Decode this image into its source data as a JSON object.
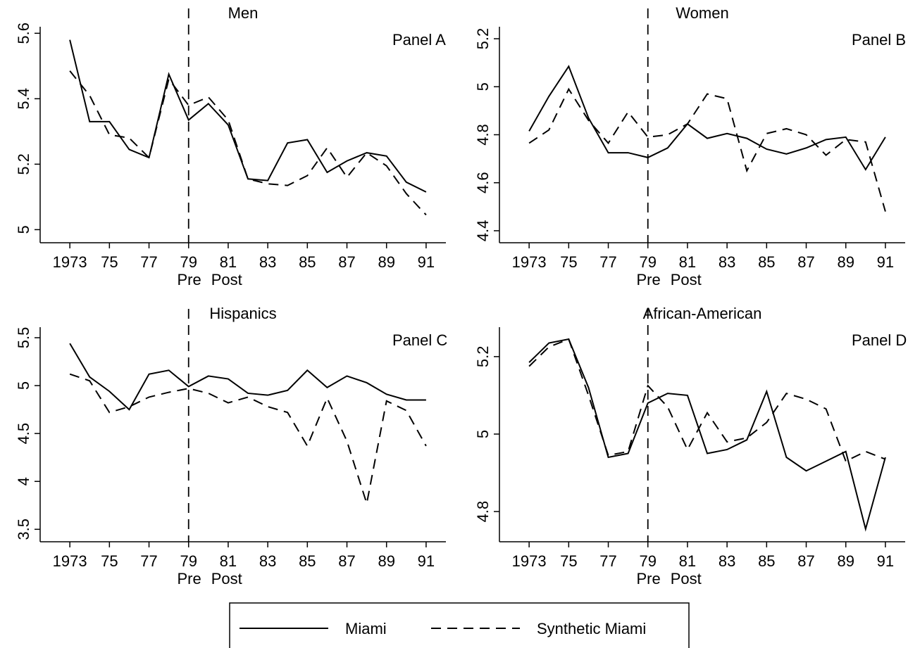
{
  "chart_data": [
    {
      "type": "line",
      "title": "Men",
      "panel_label": "Panel A",
      "x": [
        1973,
        1974,
        1975,
        1976,
        1977,
        1978,
        1979,
        1980,
        1981,
        1982,
        1983,
        1984,
        1985,
        1986,
        1987,
        1988,
        1989,
        1990,
        1991
      ],
      "series": [
        {
          "color": "#000000",
          "values": [
            5.58,
            5.33,
            5.33,
            5.245,
            5.22,
            5.475,
            5.335,
            5.385,
            5.32,
            5.155,
            5.15,
            5.265,
            5.275,
            5.175,
            5.21,
            5.235,
            5.225,
            5.145,
            5.115
          ]
        },
        {
          "color": "#000000",
          "values": [
            5.485,
            5.41,
            5.29,
            5.28,
            5.22,
            5.46,
            5.38,
            5.405,
            5.335,
            5.155,
            5.14,
            5.135,
            5.165,
            5.25,
            5.16,
            5.235,
            5.195,
            5.11,
            5.045
          ]
        }
      ],
      "xlim": [
        1971.5,
        1992
      ],
      "ylim": [
        4.96,
        5.62
      ],
      "yticks": [
        5,
        5.2,
        5.4,
        5.6
      ],
      "xticks": [
        {
          "value": 1973,
          "label": "1973"
        },
        {
          "value": 1975,
          "label": "75"
        },
        {
          "value": 1977,
          "label": "77"
        },
        {
          "value": 1979,
          "label": "79"
        },
        {
          "value": 1981,
          "label": "81"
        },
        {
          "value": 1983,
          "label": "83"
        },
        {
          "value": 1985,
          "label": "85"
        },
        {
          "value": 1987,
          "label": "87"
        },
        {
          "value": 1989,
          "label": "89"
        },
        {
          "value": 1991,
          "label": "91"
        }
      ],
      "vline": 1979,
      "period_labels": [
        "Pre",
        "Post"
      ]
    },
    {
      "type": "line",
      "title": "Women",
      "panel_label": "Panel B",
      "x": [
        1973,
        1974,
        1975,
        1976,
        1977,
        1978,
        1979,
        1980,
        1981,
        1982,
        1983,
        1984,
        1985,
        1986,
        1987,
        1988,
        1989,
        1990,
        1991
      ],
      "series": [
        {
          "color": "#000000",
          "values": [
            4.815,
            4.96,
            5.085,
            4.87,
            4.725,
            4.725,
            4.705,
            4.745,
            4.845,
            4.785,
            4.805,
            4.785,
            4.74,
            4.72,
            4.745,
            4.78,
            4.79,
            4.655,
            4.79
          ]
        },
        {
          "color": "#000000",
          "values": [
            4.765,
            4.82,
            4.99,
            4.86,
            4.765,
            4.895,
            4.79,
            4.8,
            4.845,
            4.97,
            4.95,
            4.65,
            4.805,
            4.825,
            4.8,
            4.715,
            4.78,
            4.77,
            4.48
          ]
        }
      ],
      "xlim": [
        1971.5,
        1992
      ],
      "ylim": [
        4.35,
        5.25
      ],
      "yticks": [
        4.4,
        4.6,
        4.8,
        5,
        5.2
      ],
      "xticks": [
        {
          "value": 1973,
          "label": "1973"
        },
        {
          "value": 1975,
          "label": "75"
        },
        {
          "value": 1977,
          "label": "77"
        },
        {
          "value": 1979,
          "label": "79"
        },
        {
          "value": 1981,
          "label": "81"
        },
        {
          "value": 1983,
          "label": "83"
        },
        {
          "value": 1985,
          "label": "85"
        },
        {
          "value": 1987,
          "label": "87"
        },
        {
          "value": 1989,
          "label": "89"
        },
        {
          "value": 1991,
          "label": "91"
        }
      ],
      "vline": 1979,
      "period_labels": [
        "Pre",
        "Post"
      ]
    },
    {
      "type": "line",
      "title": "Hispanics",
      "panel_label": "Panel C",
      "x": [
        1973,
        1974,
        1975,
        1976,
        1977,
        1978,
        1979,
        1980,
        1981,
        1982,
        1983,
        1984,
        1985,
        1986,
        1987,
        1988,
        1989,
        1990,
        1991
      ],
      "series": [
        {
          "color": "#000000",
          "values": [
            5.44,
            5.09,
            4.94,
            4.75,
            5.12,
            5.16,
            4.99,
            5.1,
            5.07,
            4.92,
            4.9,
            4.95,
            5.16,
            4.98,
            5.1,
            5.03,
            4.91,
            4.85,
            4.85
          ]
        },
        {
          "color": "#000000",
          "values": [
            5.12,
            5.05,
            4.72,
            4.78,
            4.88,
            4.93,
            4.97,
            4.92,
            4.82,
            4.88,
            4.78,
            4.72,
            4.37,
            4.87,
            4.42,
            3.77,
            4.84,
            4.74,
            4.37
          ]
        }
      ],
      "xlim": [
        1971.5,
        1992
      ],
      "ylim": [
        3.37,
        5.61
      ],
      "yticks": [
        3.5,
        4,
        4.5,
        5,
        5.5
      ],
      "xticks": [
        {
          "value": 1973,
          "label": "1973"
        },
        {
          "value": 1975,
          "label": "75"
        },
        {
          "value": 1977,
          "label": "77"
        },
        {
          "value": 1979,
          "label": "79"
        },
        {
          "value": 1981,
          "label": "81"
        },
        {
          "value": 1983,
          "label": "83"
        },
        {
          "value": 1985,
          "label": "85"
        },
        {
          "value": 1987,
          "label": "87"
        },
        {
          "value": 1989,
          "label": "89"
        },
        {
          "value": 1991,
          "label": "91"
        }
      ],
      "vline": 1979,
      "period_labels": [
        "Pre",
        "Post"
      ]
    },
    {
      "type": "line",
      "title": "African-American",
      "panel_label": "Panel D",
      "x": [
        1973,
        1974,
        1975,
        1976,
        1977,
        1978,
        1979,
        1980,
        1981,
        1982,
        1983,
        1984,
        1985,
        1986,
        1987,
        1988,
        1989,
        1990,
        1991
      ],
      "series": [
        {
          "color": "#000000",
          "values": [
            5.185,
            5.235,
            5.245,
            5.12,
            4.94,
            4.95,
            5.08,
            5.105,
            5.1,
            4.95,
            4.96,
            4.985,
            5.11,
            4.94,
            4.905,
            4.93,
            4.955,
            4.755,
            4.94
          ]
        },
        {
          "color": "#000000",
          "values": [
            5.175,
            5.225,
            5.245,
            5.1,
            4.945,
            4.955,
            5.125,
            5.07,
            4.96,
            5.055,
            4.98,
            4.99,
            5.03,
            5.105,
            5.09,
            5.065,
            4.93,
            4.955,
            4.935
          ]
        }
      ],
      "xlim": [
        1971.5,
        1992
      ],
      "ylim": [
        4.722,
        5.276
      ],
      "yticks": [
        4.8,
        5,
        5.2
      ],
      "xticks": [
        {
          "value": 1973,
          "label": "1973"
        },
        {
          "value": 1975,
          "label": "75"
        },
        {
          "value": 1977,
          "label": "77"
        },
        {
          "value": 1979,
          "label": "79"
        },
        {
          "value": 1981,
          "label": "81"
        },
        {
          "value": 1983,
          "label": "83"
        },
        {
          "value": 1985,
          "label": "85"
        },
        {
          "value": 1987,
          "label": "87"
        },
        {
          "value": 1989,
          "label": "89"
        },
        {
          "value": 1991,
          "label": "91"
        }
      ],
      "vline": 1979,
      "period_labels": [
        "Pre",
        "Post"
      ]
    }
  ],
  "legend": [
    {
      "name": "Miami",
      "dash": "solid"
    },
    {
      "name": "Synthetic Miami",
      "dash": "dashed"
    }
  ]
}
